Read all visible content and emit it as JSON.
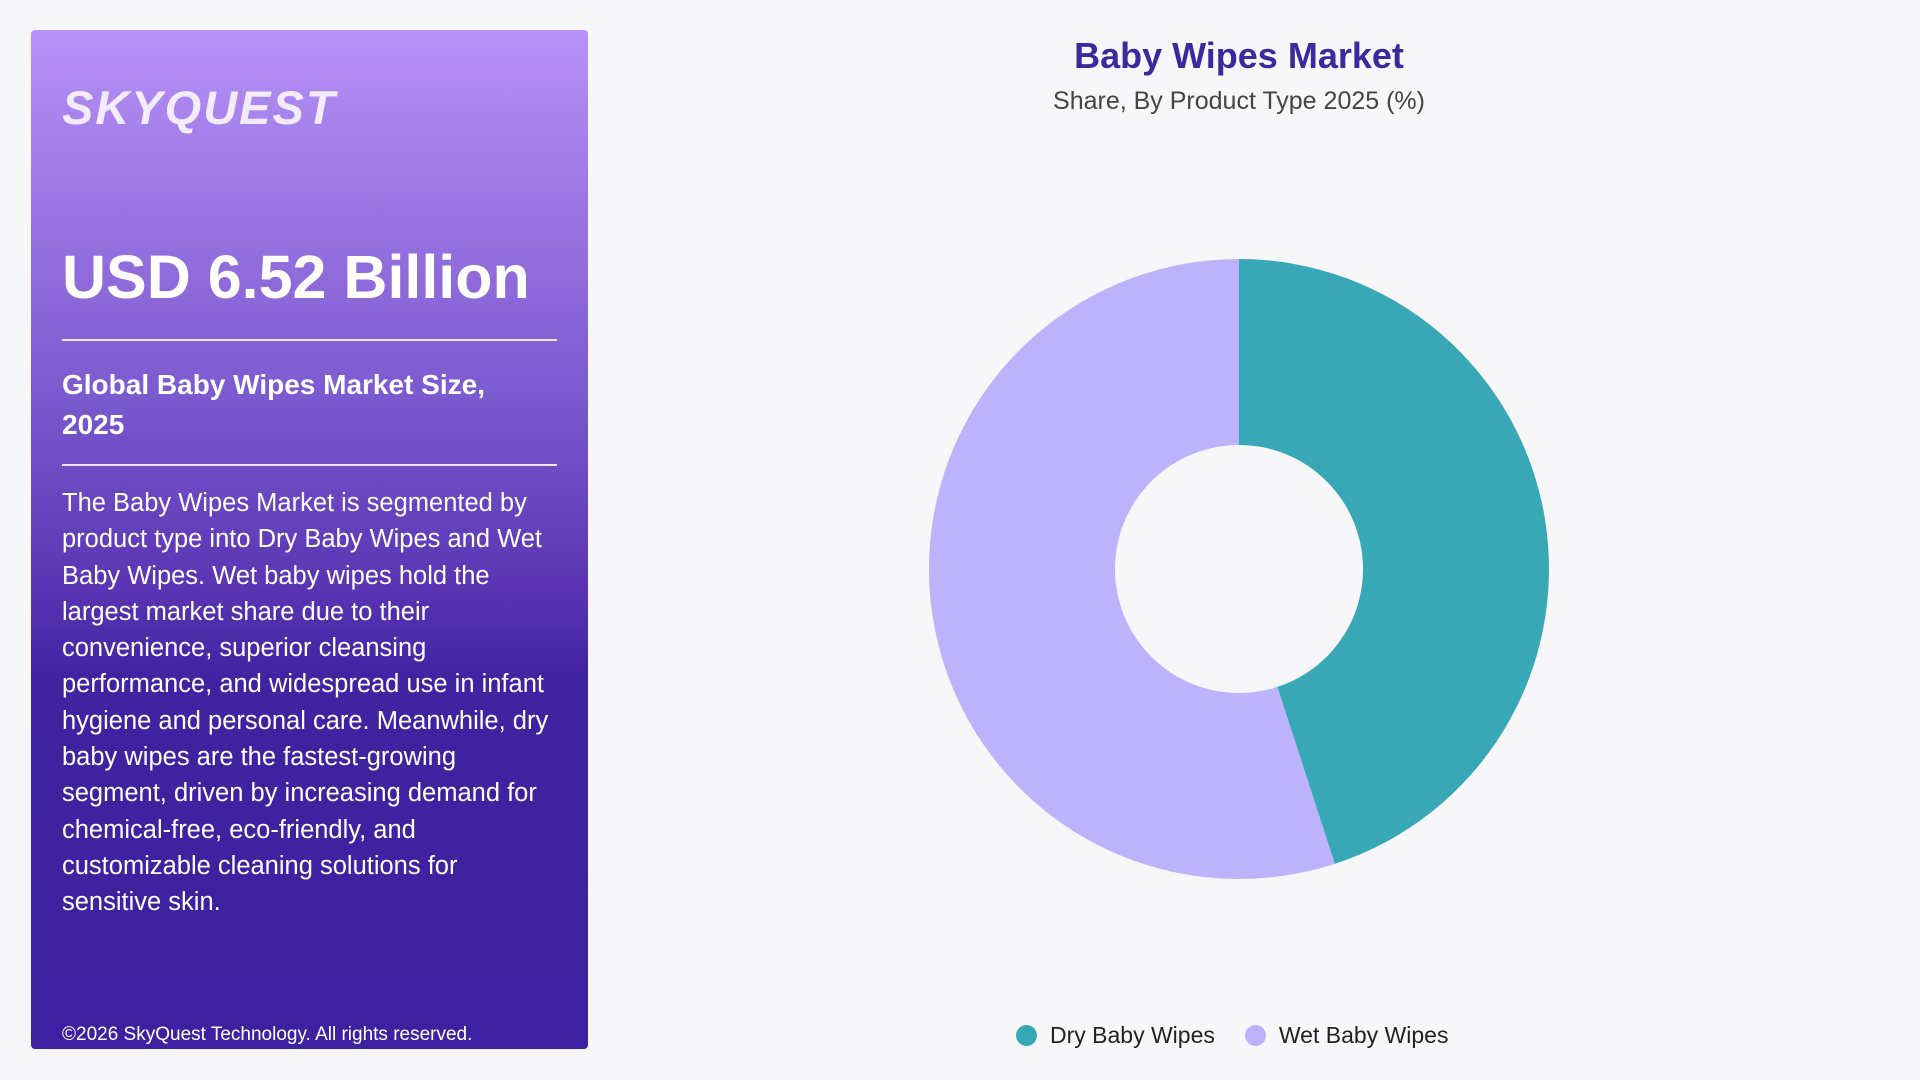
{
  "panel": {
    "logo": "SKYQUEST",
    "market_value": "USD 6.52 Billion",
    "size_label": "Global Baby Wipes Market Size, 2025",
    "description": "The Baby Wipes Market is segmented by product type into Dry Baby Wipes and Wet Baby Wipes. Wet baby wipes hold the largest market share due to their convenience, superior cleansing performance, and widespread use in infant hygiene and personal care. Meanwhile, dry baby wipes are the fastest-growing segment, driven by increasing demand for chemical-free, eco-friendly, and customizable cleaning solutions for sensitive skin.",
    "copyright": "©2026 SkyQuest Technology. All rights reserved."
  },
  "chart_data": {
    "type": "pie",
    "title": "Baby Wipes Market",
    "subtitle": "Share, By Product Type 2025 (%)",
    "categories": [
      "Dry Baby Wipes",
      "Wet Baby Wipes"
    ],
    "values": [
      45,
      55
    ],
    "colors": [
      "#38a8b7",
      "#bdb3fd"
    ],
    "donut": true,
    "legend_position": "bottom"
  }
}
